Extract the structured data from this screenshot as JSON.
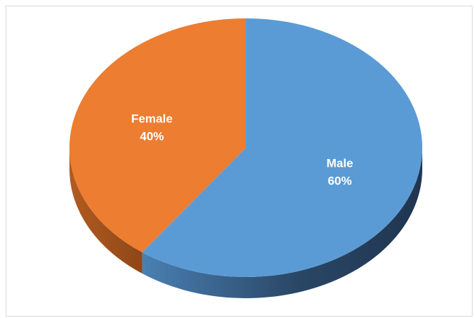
{
  "chart_data": {
    "type": "pie",
    "style": "3d",
    "slices": [
      {
        "name": "Male",
        "value": 60,
        "label": "Male",
        "pct_label": "60%",
        "color": "#5b9bd5",
        "side_color": "#2e4f70"
      },
      {
        "name": "Female",
        "value": 40,
        "label": "Female",
        "pct_label": "40%",
        "color": "#ed7d31",
        "side_color": "#a9561f"
      }
    ],
    "start_angle": "12 o'clock",
    "direction": "clockwise",
    "legend": "none"
  }
}
